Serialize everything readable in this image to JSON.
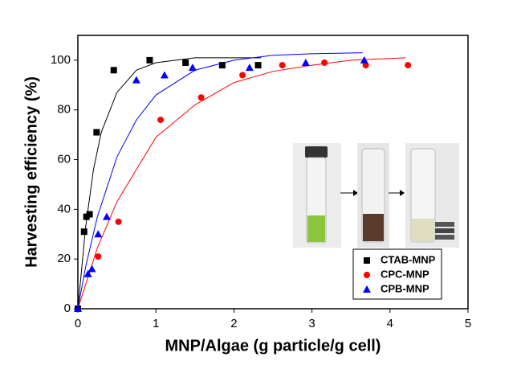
{
  "chart_data": {
    "type": "scatter",
    "xlabel": "MNP/Algae (g particle/g cell)",
    "ylabel": "Harvesting efficiency (%)",
    "xlim": [
      0,
      5
    ],
    "ylim": [
      0,
      110
    ],
    "xticks": [
      0,
      1,
      2,
      3,
      4,
      5
    ],
    "yticks": [
      0,
      20,
      40,
      60,
      80,
      100
    ],
    "legend": "lower right",
    "series": [
      {
        "name": "CTAB-MNP",
        "color": "#000000",
        "marker": "square",
        "x": [
          0,
          0.08,
          0.11,
          0.15,
          0.24,
          0.46,
          0.92,
          1.38,
          1.85,
          2.31
        ],
        "values": [
          0,
          31,
          37,
          38,
          71,
          96,
          100,
          99,
          98,
          98
        ]
      },
      {
        "name": "CPC-MNP",
        "color": "#ff0000",
        "marker": "circle",
        "x": [
          0.26,
          0.52,
          1.06,
          1.58,
          2.11,
          2.62,
          3.16,
          3.69,
          4.23
        ],
        "values": [
          21,
          35,
          76,
          85,
          94,
          98,
          99,
          98,
          98
        ]
      },
      {
        "name": "CPB-MNP",
        "color": "#0000ff",
        "marker": "triangle",
        "x": [
          0,
          0.13,
          0.18,
          0.26,
          0.37,
          0.75,
          1.11,
          1.47,
          2.2,
          2.92,
          3.67
        ],
        "values": [
          0,
          14,
          16,
          30,
          37,
          92,
          94,
          97,
          97,
          99,
          100
        ]
      }
    ],
    "fits": [
      {
        "color": "#000000",
        "x": [
          0,
          0.1,
          0.2,
          0.3,
          0.5,
          0.75,
          1,
          1.5,
          2,
          2.35
        ],
        "values": [
          0,
          33,
          56,
          71,
          87,
          96,
          99,
          101,
          101,
          101
        ]
      },
      {
        "color": "#ff0000",
        "x": [
          0,
          0.25,
          0.5,
          1,
          1.5,
          2,
          2.5,
          3,
          3.5,
          4.2
        ],
        "values": [
          0,
          24.5,
          43,
          69,
          82,
          91,
          95.5,
          98,
          100,
          101
        ]
      },
      {
        "color": "#0000ff",
        "x": [
          0,
          0.1,
          0.25,
          0.5,
          0.75,
          1,
          1.5,
          2,
          2.5,
          3,
          3.65
        ],
        "values": [
          0,
          17,
          37,
          61,
          76,
          86,
          96,
          100,
          102,
          102.6,
          103
        ]
      }
    ]
  }
}
